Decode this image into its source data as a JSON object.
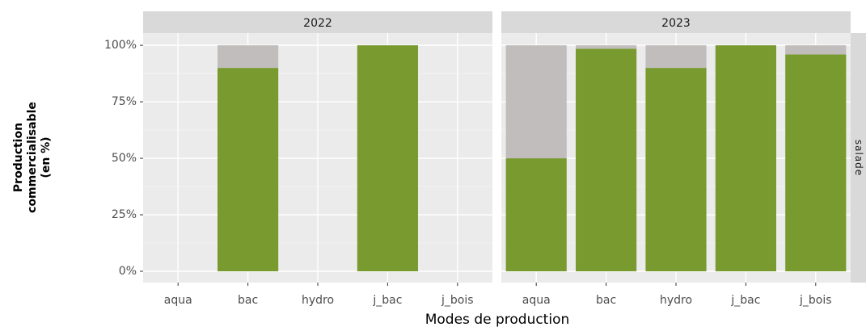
{
  "chart_data": {
    "type": "bar",
    "stacked": true,
    "xlabel": "Modes de production",
    "ylabel": [
      "Production",
      "commercialisable",
      "(en %)"
    ],
    "row_strip": "salade",
    "categories": [
      "aqua",
      "bac",
      "hydro",
      "j_bac",
      "j_bois"
    ],
    "ylim": [
      -5,
      105.4
    ],
    "yticks": [
      {
        "value": 0,
        "label": "0%"
      },
      {
        "value": 25,
        "label": "25%"
      },
      {
        "value": 50,
        "label": "50%"
      },
      {
        "value": 75,
        "label": "75%"
      },
      {
        "value": 100,
        "label": "100%"
      }
    ],
    "grid": true,
    "facets": [
      {
        "title": "2022",
        "series": [
          {
            "color": "#789a2f",
            "values": [
              null,
              90,
              null,
              100,
              null
            ]
          },
          {
            "color": "#c1bdbd",
            "values": [
              null,
              10,
              null,
              0,
              null
            ]
          }
        ]
      },
      {
        "title": "2023",
        "series": [
          {
            "color": "#789a2f",
            "values": [
              50,
              98.5,
              90,
              100,
              96
            ]
          },
          {
            "color": "#c1bdbd",
            "values": [
              50,
              1.5,
              10,
              0,
              4
            ]
          }
        ]
      }
    ]
  }
}
